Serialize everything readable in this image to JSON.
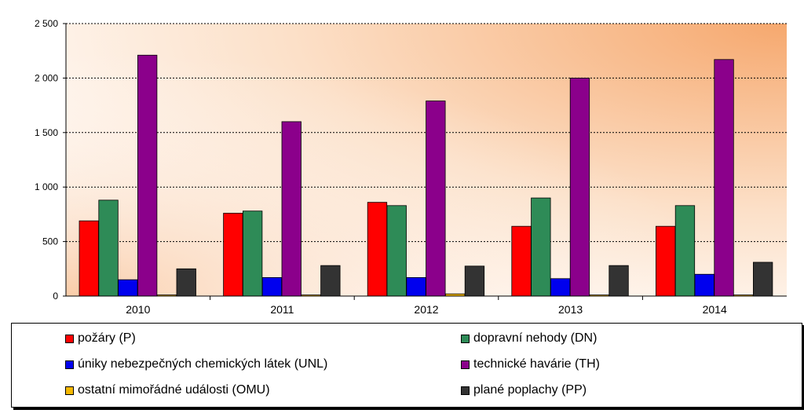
{
  "chart_data": {
    "type": "bar",
    "categories": [
      "2010",
      "2011",
      "2012",
      "2013",
      "2014"
    ],
    "ylim": [
      0,
      2500
    ],
    "yticks": [
      "0",
      "500",
      "1 000",
      "1 500",
      "2 000",
      "2 500"
    ],
    "ytick_values": [
      0,
      500,
      1000,
      1500,
      2000,
      2500
    ],
    "grid": true,
    "legend_position": "bottom",
    "series": [
      {
        "name": "požáry (P)",
        "color": "#ff0000",
        "values": [
          690,
          760,
          860,
          640,
          640
        ]
      },
      {
        "name": "dopravní nehody (DN)",
        "color": "#2e8b57",
        "values": [
          880,
          780,
          830,
          900,
          830
        ]
      },
      {
        "name": "úniky nebezpečných chemických látek (UNL)",
        "color": "#0000ee",
        "values": [
          150,
          170,
          170,
          160,
          200
        ]
      },
      {
        "name": "technické havárie (TH)",
        "color": "#8b008b",
        "values": [
          2210,
          1600,
          1790,
          2000,
          2170
        ]
      },
      {
        "name": "ostatní mimořádné události (OMU)",
        "color": "#f5b800",
        "values": [
          10,
          10,
          20,
          10,
          10
        ]
      },
      {
        "name": "plané poplachy (PP)",
        "color": "#333333",
        "values": [
          250,
          280,
          275,
          280,
          310
        ]
      }
    ]
  }
}
